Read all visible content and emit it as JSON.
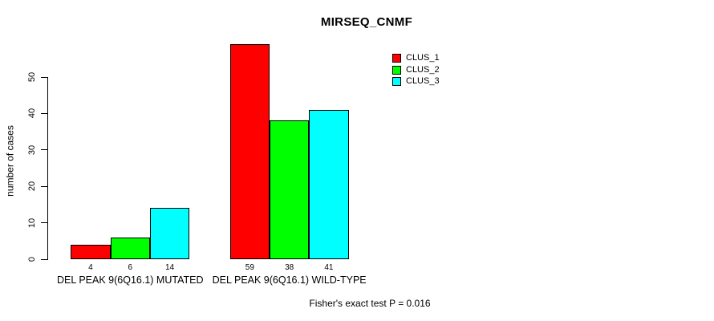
{
  "figure": {
    "background": "#FFFFFF",
    "text_color": "#000000"
  },
  "chart_data": {
    "type": "bar",
    "title": "MIRSEQ_CNMF",
    "ylabel": "number of cases",
    "xlabel": "",
    "categories": [
      "DEL PEAK 9(6Q16.1) MUTATED",
      "DEL PEAK 9(6Q16.1) WILD-TYPE"
    ],
    "series": [
      {
        "name": "CLUS_1",
        "color": "#FF0000",
        "values": [
          4,
          59
        ]
      },
      {
        "name": "CLUS_2",
        "color": "#00FF00",
        "values": [
          6,
          38
        ]
      },
      {
        "name": "CLUS_3",
        "color": "#00FFFF",
        "values": [
          14,
          41
        ]
      }
    ],
    "bar_value_labels": [
      [
        "4",
        "6",
        "14"
      ],
      [
        "59",
        "38",
        "41"
      ]
    ],
    "ylim": [
      0,
      50
    ],
    "yticks": [
      0,
      10,
      20,
      30,
      40,
      50
    ],
    "grid": false,
    "legend_position": "top-right",
    "bar_border_color": "#000000",
    "axis_color": "#000000",
    "annotation": "Fisher's exact test P = 0.016"
  }
}
